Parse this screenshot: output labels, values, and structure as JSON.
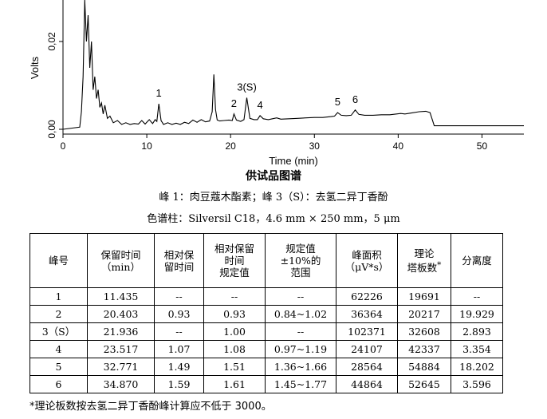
{
  "chart_data": {
    "type": "line",
    "xlabel": "Time (min)",
    "ylabel": "Volts",
    "xlim": [
      0,
      55
    ],
    "ylim": [
      -0.001,
      0.034
    ],
    "xticks": [
      0,
      10,
      20,
      30,
      40,
      50
    ],
    "yticks": [
      0.0,
      0.02
    ],
    "ytick_labels": [
      "0,00",
      "0,02"
    ],
    "x": [
      0,
      2,
      2.2,
      2.4,
      2.6,
      2.8,
      3.0,
      3.2,
      3.4,
      3.6,
      3.8,
      4.0,
      4.2,
      4.4,
      4.6,
      4.8,
      5.0,
      5.3,
      5.6,
      6.0,
      6.5,
      7.0,
      7.5,
      8.0,
      8.5,
      9.0,
      9.4,
      9.8,
      10.3,
      10.7,
      11.0,
      11.2,
      11.435,
      11.7,
      12.0,
      12.5,
      13.0,
      13.5,
      14.0,
      14.5,
      15.0,
      15.5,
      16.0,
      16.5,
      17.0,
      17.5,
      17.8,
      18.0,
      18.2,
      18.4,
      18.7,
      19.2,
      19.8,
      20.2,
      20.403,
      20.7,
      21.2,
      21.6,
      21.936,
      22.3,
      22.8,
      23.2,
      23.517,
      23.9,
      24.5,
      25.0,
      25.5,
      26.0,
      27.0,
      28.0,
      29.0,
      30.0,
      31.0,
      32.0,
      32.4,
      32.771,
      33.2,
      33.8,
      34.4,
      34.87,
      35.3,
      36.0,
      37.0,
      38.0,
      39.0,
      39.8,
      40.3,
      40.8,
      41.5,
      42.5,
      43.3,
      43.8,
      44.3,
      45.0,
      46.0,
      48.0,
      50.0,
      52.0,
      54.0,
      55.0
    ],
    "y": [
      0,
      0.0005,
      0.004,
      0.012,
      0.035,
      0.02,
      0.026,
      0.014,
      0.02,
      0.009,
      0.012,
      0.007,
      0.009,
      0.005,
      0.006,
      0.0035,
      0.0055,
      0.0025,
      0.003,
      0.0015,
      0.002,
      0.0011,
      0.0015,
      0.0011,
      0.0013,
      0.0012,
      0.002,
      0.0012,
      0.0022,
      0.0013,
      0.0022,
      0.0018,
      0.0058,
      0.002,
      0.0011,
      0.0015,
      0.0011,
      0.0014,
      0.0011,
      0.0016,
      0.0013,
      0.0021,
      0.0016,
      0.0022,
      0.0017,
      0.0019,
      0.004,
      0.0125,
      0.0045,
      0.0021,
      0.0019,
      0.002,
      0.0021,
      0.002,
      0.0035,
      0.0021,
      0.0018,
      0.0022,
      0.0072,
      0.0025,
      0.0022,
      0.0022,
      0.0031,
      0.0024,
      0.0022,
      0.0024,
      0.0026,
      0.0023,
      0.0024,
      0.0025,
      0.0026,
      0.0027,
      0.0027,
      0.0029,
      0.003,
      0.0038,
      0.0032,
      0.0031,
      0.0032,
      0.0044,
      0.0034,
      0.0032,
      0.0032,
      0.0033,
      0.0033,
      0.0035,
      0.0036,
      0.0035,
      0.0037,
      0.004,
      0.0041,
      0.0038,
      0.0008,
      0.0008,
      0.0008,
      0.0008,
      0.0008,
      0.0008,
      0.0008,
      0.0008
    ],
    "peak_labels": [
      {
        "label": "1",
        "x": 11.435,
        "y": 0.0058
      },
      {
        "label": "2",
        "x": 20.403,
        "y": 0.0035
      },
      {
        "label": "3(S)",
        "x": 21.936,
        "y": 0.0072
      },
      {
        "label": "4",
        "x": 23.517,
        "y": 0.0031
      },
      {
        "label": "5",
        "x": 32.771,
        "y": 0.0038
      },
      {
        "label": "6",
        "x": 34.87,
        "y": 0.0044
      }
    ],
    "title": "供试品图谱"
  },
  "subtitle1": "峰 1：肉豆蔻木酯素；峰 3（S）：去氢二异丁香酚",
  "subtitle2": "色谱柱：Silversil C18，4.6 mm × 250 mm，5 μm",
  "table": {
    "headers": [
      "峰号",
      "保留时间（min）",
      "相对保留时间",
      "相对保留时间规定值",
      "规定值±10%的范围",
      "峰面积（μV*s）",
      "理论塔板数*",
      "分离度"
    ],
    "rows": [
      [
        "1",
        "11.435",
        "--",
        "--",
        "--",
        "62226",
        "19691",
        "--"
      ],
      [
        "2",
        "20.403",
        "0.93",
        "0.93",
        "0.84~1.02",
        "36364",
        "20217",
        "19.929"
      ],
      [
        "3（S）",
        "21.936",
        "--",
        "1.00",
        "--",
        "102371",
        "32608",
        "2.893"
      ],
      [
        "4",
        "23.517",
        "1.07",
        "1.08",
        "0.97~1.19",
        "24107",
        "42337",
        "3.354"
      ],
      [
        "5",
        "32.771",
        "1.49",
        "1.51",
        "1.36~1.66",
        "28564",
        "54884",
        "18.202"
      ],
      [
        "6",
        "34.870",
        "1.59",
        "1.61",
        "1.45~1.77",
        "44864",
        "52645",
        "3.596"
      ]
    ]
  },
  "footnote": "*理论板数按去氢二异丁香酚峰计算应不低于 3000。"
}
